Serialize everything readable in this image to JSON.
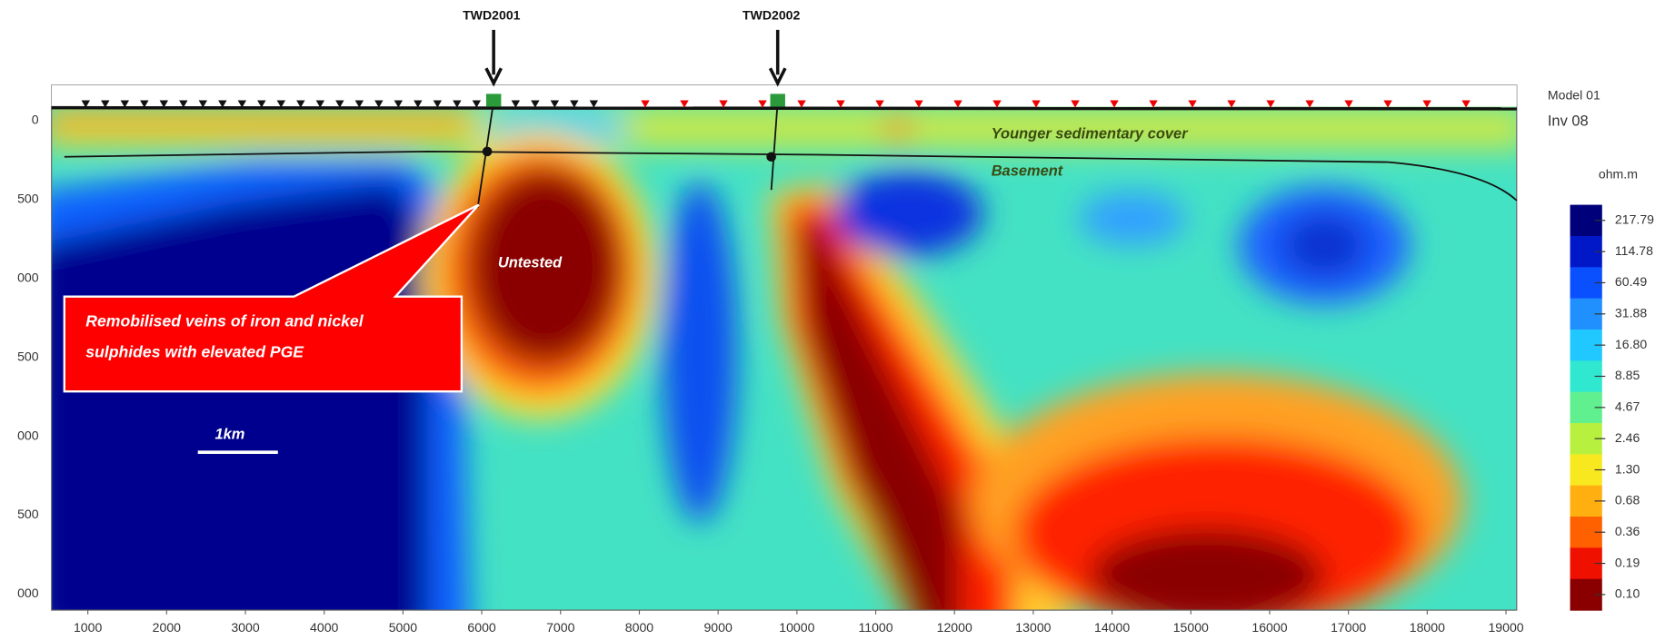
{
  "drill_holes": [
    "TWD2001",
    "TWD2002"
  ],
  "annotations": {
    "cover": "Younger sedimentary cover",
    "basement": "Basement",
    "untested": "Untested",
    "callout": [
      "Remobilised veins of iron and nickel",
      "sulphides with elevated PGE"
    ],
    "scale": "1km"
  },
  "model": {
    "name": "Model 01",
    "inversion": "Inv 08"
  },
  "x_axis": {
    "ticks": [
      "1000",
      "2000",
      "3000",
      "4000",
      "5000",
      "6000",
      "7000",
      "8000",
      "9000",
      "10000",
      "11000",
      "12000",
      "13000",
      "14000",
      "15000",
      "16000",
      "17000",
      "18000",
      "19000"
    ]
  },
  "y_axis": {
    "ticks": [
      "0",
      "500",
      "000",
      "500",
      "000",
      "500",
      "000"
    ]
  },
  "colorbar": {
    "unit": "ohm.m",
    "labels": [
      "217.79",
      "114.78",
      "60.49",
      "31.88",
      "16.80",
      "8.85",
      "4.67",
      "2.46",
      "1.30",
      "0.68",
      "0.36",
      "0.19",
      "0.10"
    ]
  }
}
